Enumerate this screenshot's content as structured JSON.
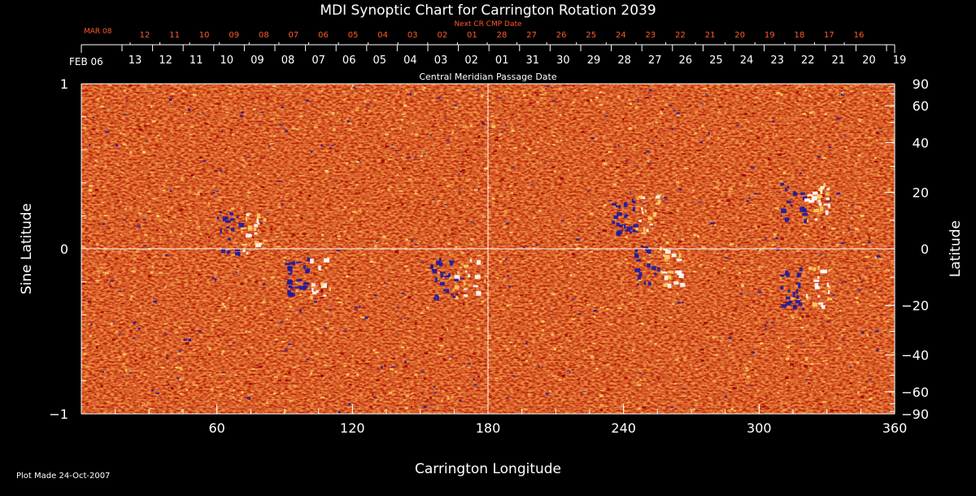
{
  "chart_data": {
    "type": "heatmap",
    "title": "MDI Synoptic Chart for Carrington Rotation 2039",
    "xlabel": "Carrington Longitude",
    "ylabel_left": "Sine Latitude",
    "ylabel_right": "Latitude",
    "xlim": [
      0,
      360
    ],
    "ylim_sine": [
      -1,
      1
    ],
    "x_ticks": [
      60,
      120,
      180,
      240,
      300,
      360
    ],
    "y_ticks_sine": [
      {
        "value": 1,
        "label": "1"
      },
      {
        "value": 0,
        "label": "0"
      },
      {
        "value": -1,
        "label": "−1"
      }
    ],
    "y_ticks_latitude": [
      90,
      60,
      40,
      20,
      0,
      -20,
      -40,
      -60,
      -90
    ],
    "top_axis_label": "Central Meridian Passage Date",
    "top_axis_start_label": "FEB 06",
    "top_axis_dates": [
      "13",
      "12",
      "11",
      "10",
      "09",
      "08",
      "07",
      "06",
      "05",
      "04",
      "03",
      "02",
      "01",
      "31",
      "30",
      "29",
      "28",
      "27",
      "26",
      "25",
      "24",
      "23",
      "22",
      "21",
      "20",
      "19"
    ],
    "next_cr_label": "Next CR CMP Date",
    "next_cr_start_label": "MAR 08",
    "next_cr_dates": [
      "12",
      "11",
      "10",
      "09",
      "08",
      "07",
      "06",
      "05",
      "04",
      "03",
      "02",
      "01",
      "28",
      "27",
      "26",
      "25",
      "24",
      "23",
      "22",
      "21",
      "20",
      "19",
      "18",
      "17",
      "16"
    ],
    "grid": {
      "central_lon": 180,
      "equator_sine": 0
    },
    "colormap": [
      "#1a1aa0",
      "#9a0000",
      "#e84a10",
      "#ffd060",
      "#ffffff"
    ],
    "active_regions": [
      {
        "lon": 70,
        "sine_lat": 0.1,
        "polarity": "mixed"
      },
      {
        "lon": 100,
        "sine_lat": -0.17,
        "polarity": "mixed"
      },
      {
        "lon": 165,
        "sine_lat": -0.17,
        "polarity": "mixed"
      },
      {
        "lon": 245,
        "sine_lat": 0.22,
        "polarity": "mixed"
      },
      {
        "lon": 255,
        "sine_lat": -0.1,
        "polarity": "mixed"
      },
      {
        "lon": 320,
        "sine_lat": -0.22,
        "polarity": "mixed"
      },
      {
        "lon": 320,
        "sine_lat": 0.28,
        "polarity": "mixed"
      }
    ]
  },
  "footer": {
    "plot_made": "Plot Made 24-Oct-2007"
  }
}
